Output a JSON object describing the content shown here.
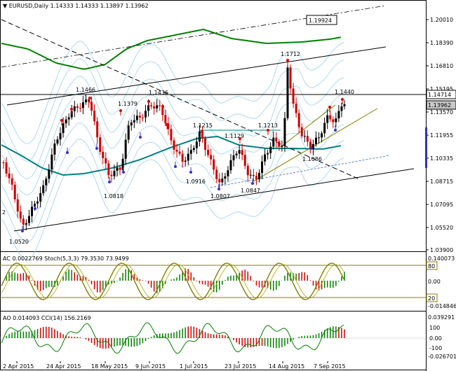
{
  "symbol_header": {
    "symbol": "EURUSD,Daily",
    "ohlc": "1.14333 1.14333 1.13897 1.13962"
  },
  "colors": {
    "candle_up": "#000000",
    "candle_down": "#cc0000",
    "channel_blue": "#9ad0ec",
    "ma_green": "#008000",
    "ma_teal": "#008080",
    "oscillator_olive": "#808000",
    "histogram_red": "#cc0000",
    "histogram_green": "#008000",
    "fractal_up": "#dd0000",
    "fractal_down": "#3333cc",
    "last_price_tag": "#c8c8c8",
    "volume_bar": "#3333aa"
  },
  "price_axis": {
    "ticks": [
      "1.20010",
      "1.18390",
      "1.16810",
      "1.15195",
      "1.13570",
      "1.11955",
      "1.10335",
      "1.08715",
      "1.07095",
      "1.05520",
      "1.03900"
    ],
    "hline_tag": "1.14714",
    "last_price_tag": "1.13962"
  },
  "price_labels": {
    "resistance_high": "1.19924",
    "p1712": "1.1712",
    "p1466": "1.1466",
    "p1436": "1.1436",
    "p1379": "1.1379",
    "p1440": "1.1440",
    "p1215": "1.1215",
    "p1213": "1.1213",
    "p1129": "1.1129",
    "p1086": "1.1086",
    "p0916": "1.0916",
    "p0818": "1.0818",
    "p0847": "1.0847",
    "p0807": "1.0807",
    "p0520": "1.0520",
    "edge_digit": "2"
  },
  "ac_panel": {
    "title": "AC 0.0022769  Stoch(5,3,3) 79.3530 73.9499",
    "ticks": [
      "0.140073",
      "0.00",
      "-0.014846"
    ],
    "level_80": "80",
    "level_20": "20"
  },
  "ao_panel": {
    "title": "AO 0.014093  CCI(14) 156.2169",
    "ticks": [
      "0.039291",
      "100",
      "0.00",
      "-100",
      "-0.026701"
    ]
  },
  "time_axis": {
    "labels": [
      "2 Apr 2015",
      "24 Apr 2015",
      "18 May 2015",
      "9 Jun 2015",
      "1 Jul 2015",
      "23 Jul 2015",
      "14 Aug 2015",
      "7 Sep 2015"
    ]
  }
}
